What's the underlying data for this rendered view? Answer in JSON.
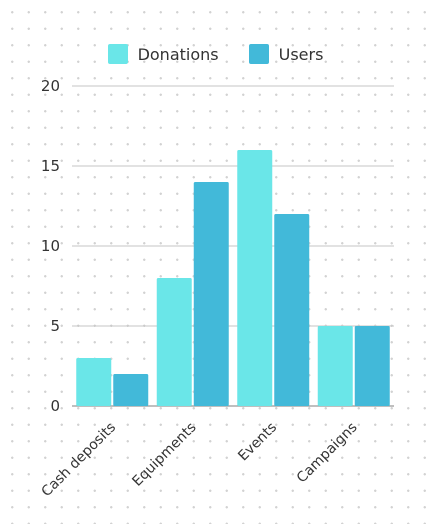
{
  "chart_data": {
    "type": "bar",
    "title": "",
    "xlabel": "",
    "ylabel": "",
    "categories": [
      "Cash deposits",
      "Equipments",
      "Events",
      "Campaigns"
    ],
    "series": [
      {
        "name": "Donations",
        "values": [
          3,
          8,
          16,
          5
        ],
        "color": "#6ae6e8"
      },
      {
        "name": "Users",
        "values": [
          2,
          14,
          12,
          5
        ],
        "color": "#42b9d9"
      }
    ],
    "ylim": [
      0,
      20
    ],
    "yticks": [
      0,
      5,
      10,
      15,
      20
    ],
    "grid": true,
    "legend": "top-center"
  }
}
